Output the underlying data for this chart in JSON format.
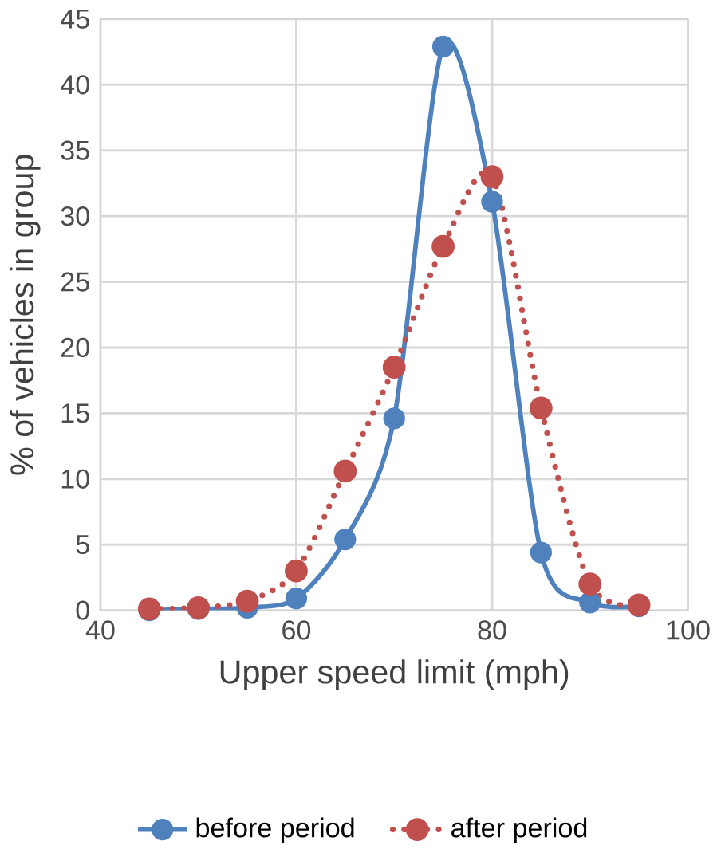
{
  "chart_data": {
    "type": "line",
    "xlabel": "Upper speed limit (mph)",
    "ylabel": "% of vehicles in group",
    "x": [
      45,
      50,
      55,
      60,
      65,
      70,
      75,
      80,
      85,
      90,
      95
    ],
    "series": [
      {
        "name": "before period",
        "color": "#4f81bd",
        "line_style": "solid",
        "values": [
          0,
          0.1,
          0.2,
          0.9,
          5.4,
          14.6,
          42.9,
          31.1,
          4.4,
          0.6,
          0.3
        ]
      },
      {
        "name": "after period",
        "color": "#c0504d",
        "line_style": "dotted",
        "values": [
          0.1,
          0.2,
          0.7,
          3.0,
          10.6,
          18.5,
          27.7,
          33.0,
          15.4,
          2.0,
          0.4
        ]
      }
    ],
    "xlim": [
      40,
      100
    ],
    "xticks": [
      40,
      60,
      80,
      100
    ],
    "ylim": [
      0,
      45
    ],
    "yticks": [
      0,
      5,
      10,
      15,
      20,
      25,
      30,
      35,
      40,
      45
    ],
    "grid": true,
    "legend": "bottom",
    "marker": "circle"
  }
}
